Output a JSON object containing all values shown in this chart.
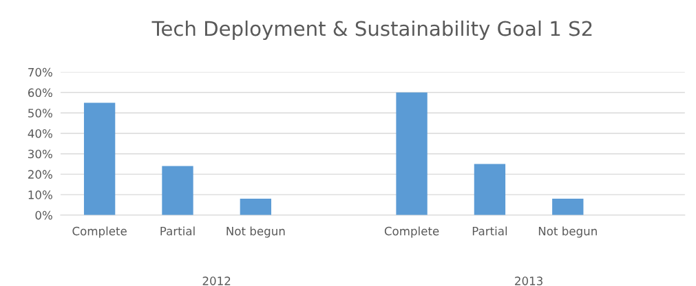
{
  "chart_data": {
    "type": "bar",
    "title": "Tech Deployment & Sustainability Goal 1 S2",
    "categories": [
      "Complete",
      "Partial",
      "Not begun",
      null,
      "Complete",
      "Partial",
      "Not begun",
      null
    ],
    "series": [
      {
        "color": "#5b9bd5",
        "values": [
          55,
          24,
          8,
          null,
          60,
          25,
          8,
          null
        ]
      }
    ],
    "ylim": [
      0,
      70
    ],
    "yticks": [
      {
        "value": 0,
        "label": "0%"
      },
      {
        "value": 10,
        "label": "10%"
      },
      {
        "value": 20,
        "label": "20%"
      },
      {
        "value": 30,
        "label": "30%"
      },
      {
        "value": 40,
        "label": "40%"
      },
      {
        "value": 50,
        "label": "50%"
      },
      {
        "value": 60,
        "label": "60%"
      },
      {
        "value": 70,
        "label": "70%"
      }
    ],
    "grid": "y",
    "legend": false,
    "annotations": [
      "2012",
      "2013"
    ]
  }
}
